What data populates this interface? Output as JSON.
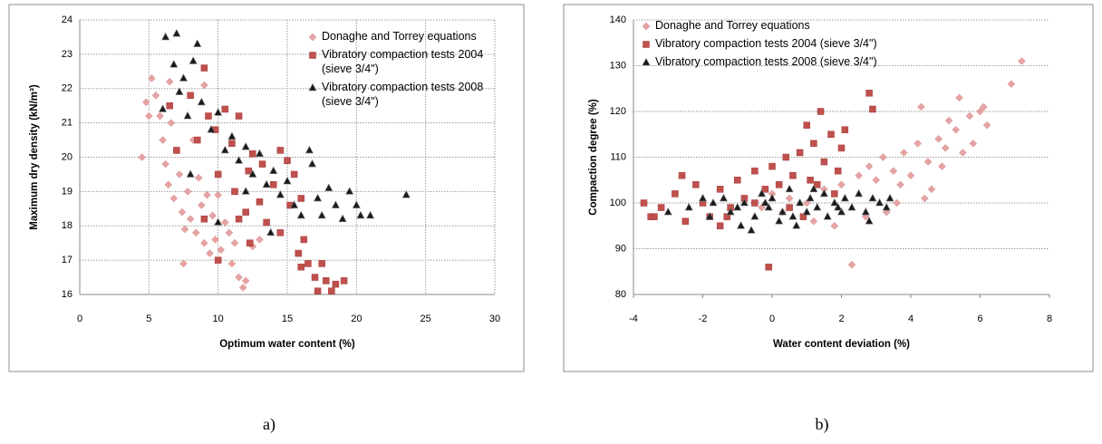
{
  "chart_data": [
    {
      "type": "scatter",
      "caption": "a)",
      "x_label": "Optimum water content (%)",
      "y_label": "Maximum dry  density (kN/m³)",
      "xlim": [
        0,
        30
      ],
      "xticks": [
        0,
        5,
        10,
        15,
        20,
        25,
        30
      ],
      "ylim": [
        16,
        24
      ],
      "yticks": [
        16,
        17,
        18,
        19,
        20,
        21,
        22,
        23,
        24
      ],
      "grid": "both",
      "series": [
        {
          "name": "Donaghe and Torrey equations",
          "color": "#e6a3a3",
          "marker": "diamond",
          "x": [
            4.5,
            4.8,
            5.2,
            5.5,
            5.8,
            6,
            6.2,
            6.4,
            6.6,
            6.8,
            7,
            7.2,
            7.4,
            7.6,
            7.8,
            8,
            8.2,
            8.4,
            8.6,
            8.8,
            9,
            9.2,
            9.4,
            9.6,
            9.8,
            10,
            10.2,
            10.5,
            10.8,
            11,
            11.2,
            11.5,
            11.8,
            12,
            12.5,
            13,
            7.5,
            9,
            5,
            6.5
          ],
          "y": [
            20,
            21.6,
            22.3,
            21.8,
            21.2,
            20.5,
            19.8,
            19.2,
            21,
            18.8,
            20.2,
            19.5,
            18.4,
            17.9,
            19,
            18.2,
            20.5,
            17.8,
            19.4,
            18.6,
            17.5,
            18.9,
            17.2,
            18.3,
            17.6,
            18.9,
            17.3,
            18.1,
            17.8,
            16.9,
            17.5,
            16.5,
            16.2,
            16.4,
            17.4,
            17.6,
            16.9,
            22.1,
            21.2,
            22.2
          ]
        },
        {
          "name": "Vibratory compaction tests 2004 (sieve 3/4\")",
          "color": "#c0504d",
          "marker": "square",
          "x": [
            6.5,
            7,
            8,
            8.5,
            9,
            9.3,
            9.8,
            10,
            10.5,
            11,
            11.2,
            11.5,
            12,
            12.2,
            12.5,
            13,
            13.2,
            13.5,
            14,
            14.5,
            15,
            15.2,
            15.5,
            15.8,
            16,
            16.2,
            16.5,
            17,
            17.2,
            17.5,
            17.8,
            18.2,
            18.5,
            19.1,
            12.3,
            10,
            9,
            11.5,
            14.5,
            16
          ],
          "y": [
            21.5,
            20.2,
            21.8,
            20.5,
            22.6,
            21.2,
            20.8,
            19.5,
            21.4,
            20.4,
            19,
            21.2,
            18.4,
            19.6,
            20.1,
            18.7,
            19.8,
            18.1,
            19.2,
            17.8,
            19.9,
            18.6,
            19.5,
            17.2,
            16.8,
            17.6,
            16.9,
            16.5,
            16.1,
            16.9,
            16.4,
            16.1,
            16.3,
            16.4,
            17.5,
            17,
            18.2,
            18.2,
            20.2,
            18.8
          ]
        },
        {
          "name": "Vibratory compaction tests 2008 (sieve 3/4\")",
          "color": "#1a1a1a",
          "marker": "triangle",
          "x": [
            6.2,
            7,
            8.5,
            6.8,
            7.5,
            8.2,
            6,
            7.2,
            7.8,
            8.8,
            9.5,
            10,
            10.5,
            11,
            11.5,
            12,
            12.5,
            13,
            13.5,
            14,
            14.5,
            15,
            15.5,
            16,
            16.6,
            16.8,
            17.2,
            17.5,
            18,
            18.5,
            19,
            19.5,
            20,
            20.3,
            21,
            23.6,
            10,
            12,
            8,
            13.8
          ],
          "y": [
            23.5,
            23.6,
            23.3,
            22.7,
            22.3,
            22.8,
            21.4,
            21.9,
            21.2,
            21.6,
            20.8,
            21.3,
            20.2,
            20.6,
            19.9,
            20.3,
            19.5,
            20.1,
            19.2,
            19.6,
            18.9,
            19.3,
            18.6,
            18.3,
            20.2,
            19.8,
            18.8,
            18.3,
            19.1,
            18.6,
            18.2,
            19,
            18.6,
            18.3,
            18.3,
            18.9,
            18.1,
            19,
            19.5,
            17.8
          ]
        }
      ]
    },
    {
      "type": "scatter",
      "caption": "b)",
      "x_label": "Water content deviation (%)",
      "y_label": "Compaction degree (%)",
      "xlim": [
        -4,
        8
      ],
      "xticks": [
        -4,
        -2,
        0,
        2,
        4,
        6,
        8
      ],
      "ylim": [
        80,
        140
      ],
      "yticks": [
        80,
        90,
        100,
        110,
        120,
        130,
        140
      ],
      "grid": "y",
      "series": [
        {
          "name": "Donaghe and Torrey equations",
          "color": "#e6a3a3",
          "marker": "diamond",
          "x": [
            -0.3,
            0,
            0.5,
            1,
            1.5,
            1.8,
            2,
            2.3,
            2.5,
            2.8,
            3,
            3.2,
            3.5,
            3.7,
            3.8,
            4,
            4.2,
            4.3,
            4.5,
            4.6,
            4.8,
            5,
            5.1,
            5.3,
            5.4,
            5.5,
            5.7,
            5.8,
            6,
            6.1,
            6.2,
            6.9,
            7.2,
            4.4,
            3.3,
            2.7,
            1.2,
            0.3,
            4.9,
            3.6
          ],
          "y": [
            99,
            102,
            101,
            100,
            103,
            95,
            104,
            86.5,
            106,
            108,
            105,
            110,
            107,
            104,
            111,
            106,
            113,
            121,
            109,
            103,
            114,
            112,
            118,
            116,
            123,
            111,
            119,
            113,
            120,
            121,
            117,
            126,
            131,
            101,
            98,
            97,
            96,
            98,
            108,
            100
          ]
        },
        {
          "name": "Vibratory compaction tests 2004 (sieve 3/4\")",
          "color": "#c0504d",
          "marker": "square",
          "x": [
            -3.7,
            -3.5,
            -3.2,
            -2.8,
            -2.5,
            -2.2,
            -2,
            -1.8,
            -1.5,
            -1.2,
            -1,
            -0.8,
            -0.5,
            -0.2,
            -0.1,
            0,
            0.2,
            0.4,
            0.6,
            0.8,
            1,
            1.1,
            1.2,
            1.4,
            1.5,
            1.7,
            1.9,
            2,
            2.1,
            2.8,
            2.9,
            -1.5,
            -0.5,
            0.5,
            1.3,
            -2.6,
            -3.4,
            0.9,
            1.8,
            -1.3
          ],
          "y": [
            100,
            97,
            99,
            102,
            96,
            104,
            100,
            97,
            103,
            99,
            105,
            101,
            107,
            103,
            86,
            108,
            104,
            110,
            106,
            111,
            117,
            105,
            113,
            120,
            109,
            115,
            107,
            112,
            116,
            124,
            120.5,
            95,
            100,
            99,
            104,
            106,
            97,
            97,
            102,
            97
          ]
        },
        {
          "name": "Vibratory compaction tests 2008 (sieve 3/4\")",
          "color": "#1a1a1a",
          "marker": "triangle",
          "x": [
            -3,
            -2.4,
            -2,
            -1.7,
            -1.4,
            -1.2,
            -1,
            -0.8,
            -0.6,
            -0.5,
            -0.3,
            -0.1,
            0,
            0.2,
            0.3,
            0.5,
            0.6,
            0.8,
            1,
            1.1,
            1.3,
            1.5,
            1.6,
            1.8,
            2,
            2.1,
            2.3,
            2.5,
            2.7,
            2.9,
            3.1,
            3.3,
            3.4,
            -0.2,
            0.7,
            1.9,
            -0.9,
            -1.8,
            2.8,
            1.2
          ],
          "y": [
            98,
            99,
            101,
            100,
            101,
            98,
            99,
            100,
            94,
            97,
            102,
            99,
            101,
            96,
            98,
            103,
            97,
            100,
            98,
            101,
            99,
            102,
            97,
            100,
            98,
            101,
            99,
            102,
            98,
            101,
            100,
            99,
            101,
            100,
            95,
            99,
            95,
            97,
            96,
            103
          ]
        }
      ]
    }
  ]
}
